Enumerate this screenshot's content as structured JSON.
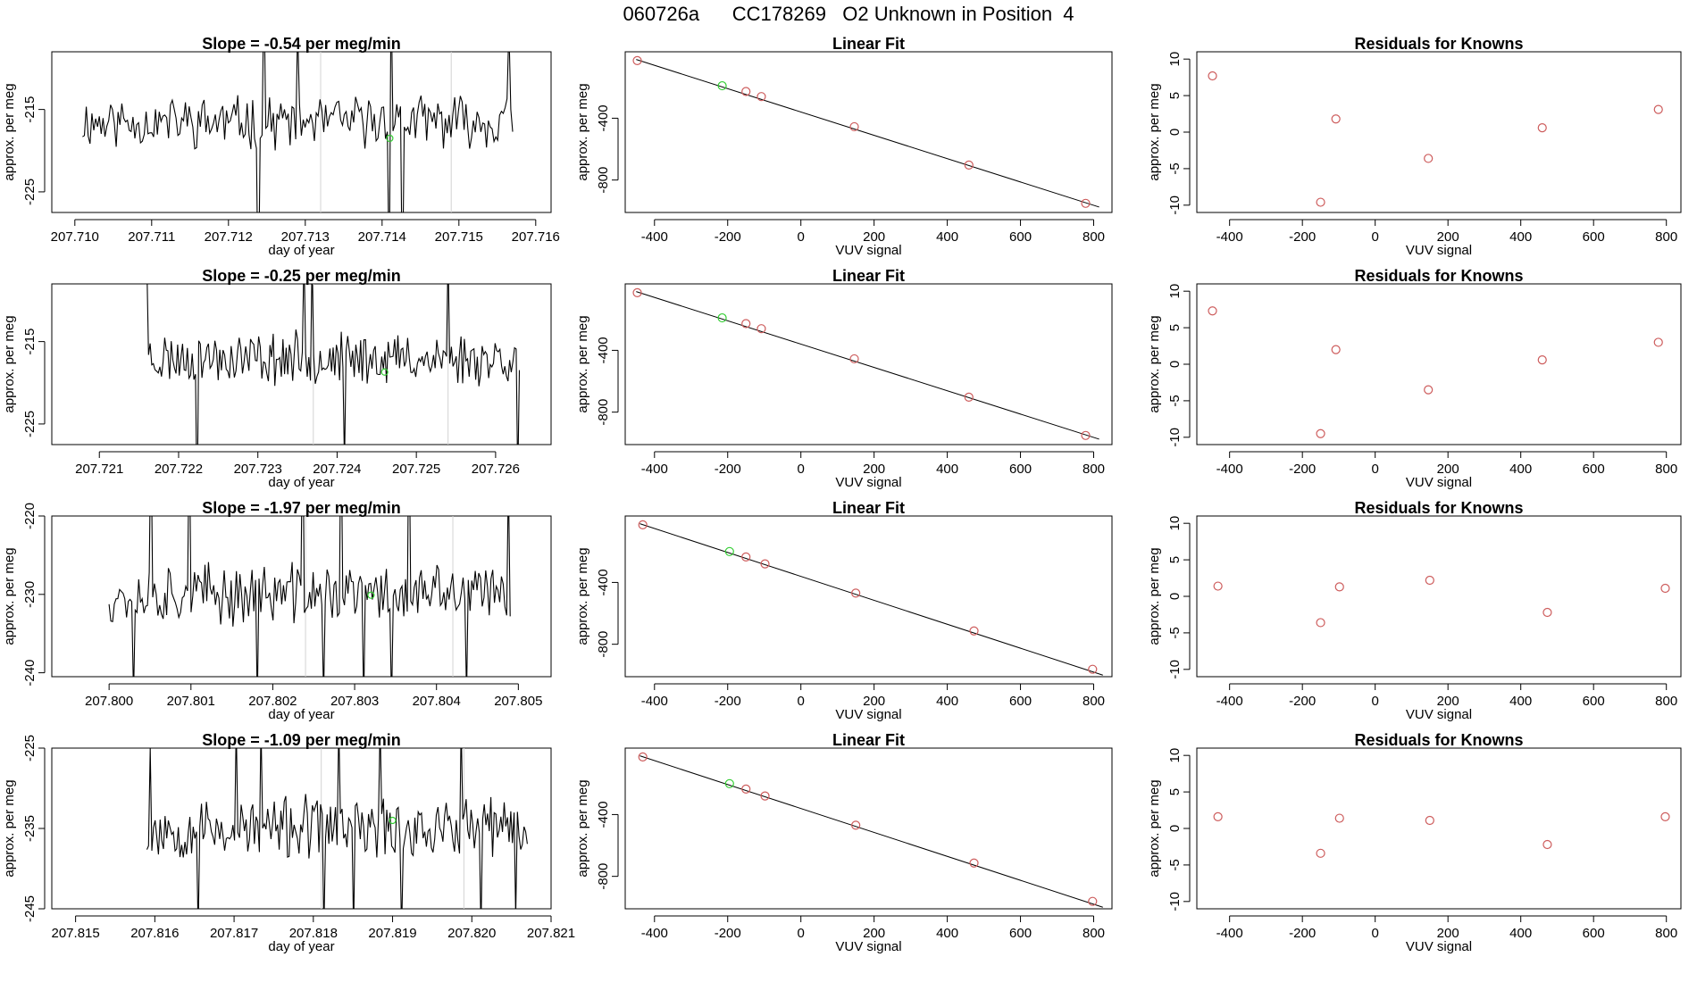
{
  "page": {
    "title": "060726a      CC178269   O2 Unknown in Position  4"
  },
  "colors": {
    "trace": "#000000",
    "known": "#cd5c5c",
    "fit_point": "#32cd32",
    "marker_line": "#d3d3d3"
  },
  "chart_data": [
    {
      "row": 0,
      "panel": "timeseries",
      "type": "line",
      "title": "Slope =  -0.54  per meg/min",
      "xlabel": "day of year",
      "ylabel": "approx. per meg",
      "xlim": [
        207.7097,
        207.7162
      ],
      "ylim": [
        -227.5,
        -208
      ],
      "xticks": [
        207.71,
        207.711,
        207.712,
        207.713,
        207.714,
        207.715,
        207.716
      ],
      "xtick_labels": [
        "207.710",
        "207.711",
        "207.712",
        "207.713",
        "207.714",
        "207.715",
        "207.716"
      ],
      "yticks": [
        -215,
        -225
      ],
      "ytick_labels": [
        "-215",
        "-225"
      ],
      "x_start": 207.7101,
      "x_end": 207.7157,
      "base": -216.5,
      "noise": 2.6,
      "seed": 11,
      "spikes": [
        [
          207.71238,
          -240
        ],
        [
          207.71245,
          -200
        ],
        [
          207.71289,
          -205
        ],
        [
          207.71409,
          -236
        ],
        [
          207.71412,
          -200
        ],
        [
          207.71426,
          -238
        ],
        [
          207.71565,
          -205
        ]
      ],
      "vlines": [
        207.7132,
        207.7149
      ],
      "green_point": [
        207.7141,
        -218.5
      ]
    },
    {
      "row": 0,
      "panel": "fit",
      "type": "scatter",
      "title": "Linear Fit",
      "xlabel": "VUV signal",
      "ylabel": "approx. per meg",
      "xlim": [
        -480,
        850
      ],
      "ylim": [
        -1010,
        30
      ],
      "xticks": [
        -400,
        -200,
        0,
        200,
        400,
        600,
        800
      ],
      "yticks": [
        -400,
        -800
      ],
      "xtick_labels": [
        "-400",
        "-200",
        "0",
        "200",
        "400",
        "600",
        "800"
      ],
      "ytick_labels": [
        "-400",
        "-800"
      ],
      "line": [
        [
          -450,
          -20
        ],
        [
          815,
          -975
        ]
      ],
      "known_points": [
        [
          -447,
          -27
        ],
        [
          -150,
          -227
        ],
        [
          -108,
          -260
        ],
        [
          146,
          -455
        ],
        [
          459,
          -703
        ],
        [
          778,
          -951
        ]
      ],
      "green_points": [
        [
          -215,
          -190
        ]
      ]
    },
    {
      "row": 0,
      "panel": "residuals",
      "type": "scatter",
      "title": "Residuals for Knowns",
      "xlabel": "VUV signal",
      "ylabel": "approx. per meg",
      "xlim": [
        -490,
        840
      ],
      "ylim": [
        -11,
        11
      ],
      "xticks": [
        -400,
        -200,
        0,
        200,
        400,
        600,
        800
      ],
      "yticks": [
        10,
        5,
        0,
        -5,
        -10
      ],
      "xtick_labels": [
        "-400",
        "-200",
        "0",
        "200",
        "400",
        "600",
        "800"
      ],
      "ytick_labels": [
        "10",
        "5",
        "0",
        "-5",
        "-10"
      ],
      "known_points": [
        [
          -447,
          7.7
        ],
        [
          -150,
          -9.6
        ],
        [
          -108,
          1.8
        ],
        [
          146,
          -3.6
        ],
        [
          459,
          0.6
        ],
        [
          778,
          3.1
        ]
      ]
    },
    {
      "row": 1,
      "panel": "timeseries",
      "type": "line",
      "title": "Slope =  -0.25  per meg/min",
      "xlabel": "day of year",
      "ylabel": "approx. per meg",
      "xlim": [
        207.7204,
        207.7267
      ],
      "ylim": [
        -227.5,
        -208
      ],
      "xticks": [
        207.721,
        207.722,
        207.723,
        207.724,
        207.725,
        207.726
      ],
      "xtick_labels": [
        "207.721",
        "207.722",
        "207.723",
        "207.724",
        "207.725",
        "207.726"
      ],
      "yticks": [
        -215,
        -225
      ],
      "ytick_labels": [
        "-215",
        "-225"
      ],
      "x_start": 207.7216,
      "x_end": 207.7263,
      "base": -217,
      "noise": 2.6,
      "seed": 23,
      "spikes": [
        [
          207.7216,
          -206
        ],
        [
          207.72223,
          -236
        ],
        [
          207.72358,
          -204
        ],
        [
          207.72368,
          -205
        ],
        [
          207.72409,
          -230
        ],
        [
          207.72541,
          -204
        ],
        [
          207.72627,
          -232
        ]
      ],
      "vlines": [
        207.7237,
        207.7254
      ],
      "green_point": [
        207.7246,
        -218.7
      ]
    },
    {
      "row": 1,
      "panel": "fit",
      "type": "scatter",
      "title": "Linear Fit",
      "xlabel": "VUV signal",
      "ylabel": "approx. per meg",
      "xlim": [
        -480,
        850
      ],
      "ylim": [
        -1010,
        30
      ],
      "xticks": [
        -400,
        -200,
        0,
        200,
        400,
        600,
        800
      ],
      "yticks": [
        -400,
        -800
      ],
      "xtick_labels": [
        "-400",
        "-200",
        "0",
        "200",
        "400",
        "600",
        "800"
      ],
      "ytick_labels": [
        "-400",
        "-800"
      ],
      "line": [
        [
          -450,
          -20
        ],
        [
          815,
          -975
        ]
      ],
      "known_points": [
        [
          -447,
          -27
        ],
        [
          -150,
          -227
        ],
        [
          -108,
          -260
        ],
        [
          146,
          -455
        ],
        [
          459,
          -703
        ],
        [
          778,
          -951
        ]
      ],
      "green_points": [
        [
          -215,
          -190
        ]
      ]
    },
    {
      "row": 1,
      "panel": "residuals",
      "type": "scatter",
      "title": "Residuals for Knowns",
      "xlabel": "VUV signal",
      "ylabel": "approx. per meg",
      "xlim": [
        -490,
        840
      ],
      "ylim": [
        -11,
        11
      ],
      "xticks": [
        -400,
        -200,
        0,
        200,
        400,
        600,
        800
      ],
      "yticks": [
        10,
        5,
        0,
        -5,
        -10
      ],
      "xtick_labels": [
        "-400",
        "-200",
        "0",
        "200",
        "400",
        "600",
        "800"
      ],
      "ytick_labels": [
        "10",
        "5",
        "0",
        "-5",
        "-10"
      ],
      "known_points": [
        [
          -447,
          7.3
        ],
        [
          -150,
          -9.5
        ],
        [
          -108,
          2.0
        ],
        [
          146,
          -3.5
        ],
        [
          459,
          0.6
        ],
        [
          778,
          3.0
        ]
      ]
    },
    {
      "row": 2,
      "panel": "timeseries",
      "type": "line",
      "title": "Slope =  -1.97  per meg/min",
      "xlabel": "day of year",
      "ylabel": "approx. per meg",
      "xlim": [
        207.7993,
        207.8054
      ],
      "ylim": [
        -240.5,
        -220
      ],
      "xticks": [
        207.8,
        207.801,
        207.802,
        207.803,
        207.804,
        207.805
      ],
      "xtick_labels": [
        "207.800",
        "207.801",
        "207.802",
        "207.803",
        "207.804",
        "207.805"
      ],
      "yticks": [
        -220,
        -230,
        -240
      ],
      "ytick_labels": [
        "-220",
        "-230",
        "-240"
      ],
      "x_start": 207.8,
      "x_end": 207.8049,
      "base": -230,
      "noise": 3.2,
      "seed": 37,
      "spikes": [
        [
          207.8003,
          -243
        ],
        [
          207.80052,
          -208
        ],
        [
          207.80098,
          -208
        ],
        [
          207.80181,
          -244
        ],
        [
          207.80236,
          -206
        ],
        [
          207.80262,
          -243
        ],
        [
          207.80283,
          -206
        ],
        [
          207.80311,
          -244
        ],
        [
          207.80345,
          -244
        ],
        [
          207.80366,
          -206
        ],
        [
          207.80437,
          -243
        ],
        [
          207.80487,
          -215
        ]
      ],
      "vlines": [
        207.8024,
        207.8042
      ],
      "green_point": [
        207.8032,
        -230.1
      ]
    },
    {
      "row": 2,
      "panel": "fit",
      "type": "scatter",
      "title": "Linear Fit",
      "xlabel": "VUV signal",
      "ylabel": "approx. per meg",
      "xlim": [
        -480,
        850
      ],
      "ylim": [
        -1010,
        30
      ],
      "xticks": [
        -400,
        -200,
        0,
        200,
        400,
        600,
        800
      ],
      "yticks": [
        -400,
        -800
      ],
      "xtick_labels": [
        "-400",
        "-200",
        "0",
        "200",
        "400",
        "600",
        "800"
      ],
      "ytick_labels": [
        "-400",
        "-800"
      ],
      "line": [
        [
          -440,
          -20
        ],
        [
          825,
          -1000
        ]
      ],
      "known_points": [
        [
          -432,
          -27
        ],
        [
          -150,
          -235
        ],
        [
          -98,
          -280
        ],
        [
          150,
          -469
        ],
        [
          473,
          -714
        ],
        [
          797,
          -962
        ]
      ],
      "green_points": [
        [
          -195,
          -200
        ]
      ]
    },
    {
      "row": 2,
      "panel": "residuals",
      "type": "scatter",
      "title": "Residuals for Knowns",
      "xlabel": "VUV signal",
      "ylabel": "approx. per meg",
      "xlim": [
        -490,
        840
      ],
      "ylim": [
        -11,
        11
      ],
      "xticks": [
        -400,
        -200,
        0,
        200,
        400,
        600,
        800
      ],
      "yticks": [
        10,
        5,
        0,
        -5,
        -10
      ],
      "xtick_labels": [
        "-400",
        "-200",
        "0",
        "200",
        "400",
        "600",
        "800"
      ],
      "ytick_labels": [
        "10",
        "5",
        "0",
        "-5",
        "-10"
      ],
      "known_points": [
        [
          -432,
          1.4
        ],
        [
          -150,
          -3.6
        ],
        [
          -98,
          1.3
        ],
        [
          150,
          2.2
        ],
        [
          473,
          -2.2
        ],
        [
          797,
          1.1
        ]
      ]
    },
    {
      "row": 3,
      "panel": "timeseries",
      "type": "line",
      "title": "Slope =  -1.09  per meg/min",
      "xlabel": "day of year",
      "ylabel": "approx. per meg",
      "xlim": [
        207.8147,
        207.821
      ],
      "ylim": [
        -245,
        -225
      ],
      "xticks": [
        207.815,
        207.816,
        207.817,
        207.818,
        207.819,
        207.82,
        207.821
      ],
      "xtick_labels": [
        "207.815",
        "207.816",
        "207.817",
        "207.818",
        "207.819",
        "207.820",
        "207.821"
      ],
      "yticks": [
        -225,
        -235,
        -245
      ],
      "ytick_labels": [
        "-225",
        "-235",
        "-245"
      ],
      "x_start": 207.8159,
      "x_end": 207.8207,
      "base": -235,
      "noise": 3.2,
      "seed": 53,
      "spikes": [
        [
          207.81595,
          -225
        ],
        [
          207.81655,
          -248
        ],
        [
          207.81702,
          -222
        ],
        [
          207.81735,
          -222
        ],
        [
          207.81814,
          -248
        ],
        [
          207.81832,
          -222
        ],
        [
          207.81851,
          -248
        ],
        [
          207.81885,
          -222
        ],
        [
          207.81912,
          -248
        ],
        [
          207.81987,
          -222
        ],
        [
          207.82012,
          -248
        ],
        [
          207.82055,
          -246
        ]
      ],
      "vlines": [
        207.8181,
        207.8199
      ],
      "green_point": [
        207.819,
        -234
      ]
    },
    {
      "row": 3,
      "panel": "fit",
      "type": "scatter",
      "title": "Linear Fit",
      "xlabel": "VUV signal",
      "ylabel": "approx. per meg",
      "xlim": [
        -480,
        850
      ],
      "ylim": [
        -1010,
        30
      ],
      "xticks": [
        -400,
        -200,
        0,
        200,
        400,
        600,
        800
      ],
      "yticks": [
        -400,
        -800
      ],
      "xtick_labels": [
        "-400",
        "-200",
        "0",
        "200",
        "400",
        "600",
        "800"
      ],
      "ytick_labels": [
        "-400",
        "-800"
      ],
      "line": [
        [
          -440,
          -20
        ],
        [
          825,
          -1000
        ]
      ],
      "known_points": [
        [
          -432,
          -27
        ],
        [
          -150,
          -235
        ],
        [
          -98,
          -280
        ],
        [
          150,
          -469
        ],
        [
          473,
          -714
        ],
        [
          797,
          -962
        ]
      ],
      "green_points": [
        [
          -195,
          -200
        ]
      ]
    },
    {
      "row": 3,
      "panel": "residuals",
      "type": "scatter",
      "title": "Residuals for Knowns",
      "xlabel": "VUV signal",
      "ylabel": "approx. per meg",
      "xlim": [
        -490,
        840
      ],
      "ylim": [
        -11,
        11
      ],
      "xticks": [
        -400,
        -200,
        0,
        200,
        400,
        600,
        800
      ],
      "yticks": [
        10,
        5,
        0,
        -5,
        -10
      ],
      "xtick_labels": [
        "-400",
        "-200",
        "0",
        "200",
        "400",
        "600",
        "800"
      ],
      "ytick_labels": [
        "10",
        "5",
        "0",
        "-5",
        "-10"
      ],
      "known_points": [
        [
          -432,
          1.6
        ],
        [
          -150,
          -3.4
        ],
        [
          -98,
          1.4
        ],
        [
          150,
          1.1
        ],
        [
          473,
          -2.2
        ],
        [
          797,
          1.6
        ]
      ]
    }
  ]
}
